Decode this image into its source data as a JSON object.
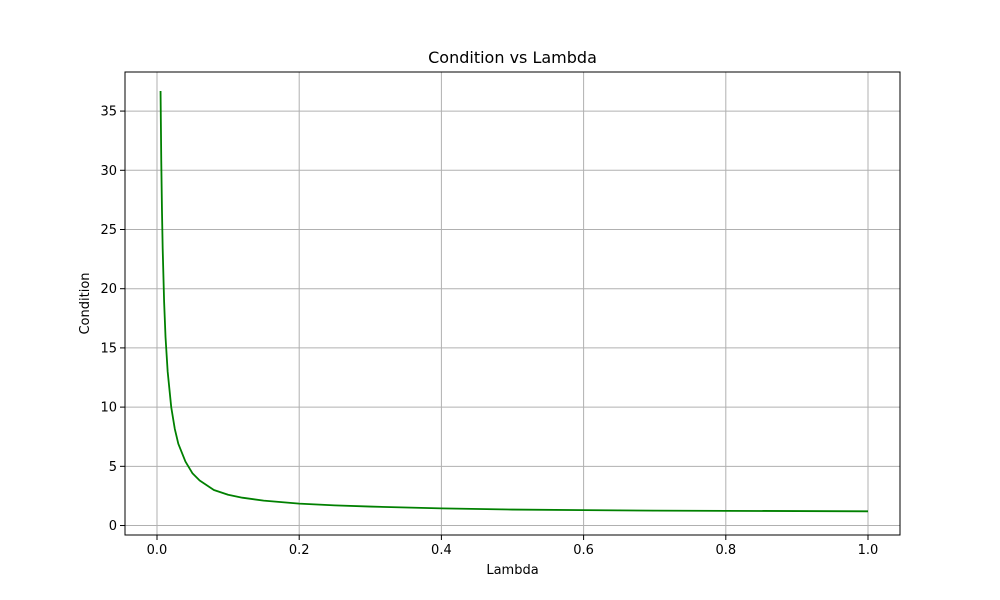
{
  "chart_data": {
    "type": "line",
    "title": "Condition vs Lambda",
    "xlabel": "Lambda",
    "ylabel": "Condition",
    "xlim": [
      -0.045,
      1.045
    ],
    "ylim": [
      -0.8,
      38.3
    ],
    "xticks": [
      0.0,
      0.2,
      0.4,
      0.6,
      0.8,
      1.0
    ],
    "xtick_labels": [
      "0.0",
      "0.2",
      "0.4",
      "0.6",
      "0.8",
      "1.0"
    ],
    "yticks": [
      0,
      5,
      10,
      15,
      20,
      25,
      30,
      35
    ],
    "ytick_labels": [
      "0",
      "5",
      "10",
      "15",
      "20",
      "25",
      "30",
      "35"
    ],
    "grid": true,
    "series": [
      {
        "color": "#008000",
        "x": [
          0.005,
          0.006,
          0.007,
          0.008,
          0.01,
          0.012,
          0.015,
          0.02,
          0.025,
          0.03,
          0.04,
          0.05,
          0.06,
          0.08,
          0.1,
          0.12,
          0.15,
          0.2,
          0.25,
          0.3,
          0.4,
          0.5,
          0.6,
          0.7,
          0.8,
          0.9,
          1.0
        ],
        "y": [
          36.7,
          30.8,
          26.6,
          23.4,
          18.9,
          15.9,
          13.0,
          10.0,
          8.17,
          6.9,
          5.4,
          4.4,
          3.8,
          3.0,
          2.6,
          2.35,
          2.1,
          1.85,
          1.7,
          1.6,
          1.45,
          1.35,
          1.3,
          1.26,
          1.24,
          1.22,
          1.2
        ]
      }
    ]
  }
}
